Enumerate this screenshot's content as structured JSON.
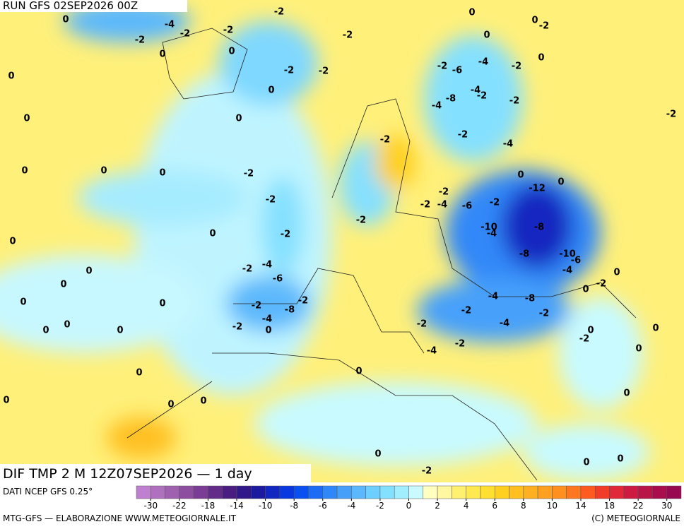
{
  "header": {
    "run": "RUN GFS 02SEP2026 00Z"
  },
  "map": {
    "title": "DIF TMP 2 M 12Z07SEP2026 — 1 day",
    "contour_labels": [
      0,
      -2,
      -4,
      -2,
      -2,
      -2,
      0,
      0,
      -2,
      0,
      -2,
      -2,
      0,
      0,
      0,
      -2,
      0,
      0,
      0,
      -2,
      -2,
      -2,
      -2,
      0,
      0,
      0,
      -2,
      -4,
      -6,
      0,
      0,
      0,
      -2,
      -2,
      -4,
      -8,
      -2,
      0,
      0,
      0,
      0,
      0,
      0,
      0,
      0,
      0,
      -2,
      -4,
      -6,
      -2,
      -10,
      -4,
      -12,
      -8,
      -8,
      -10,
      -6,
      -4,
      -4,
      -8,
      -2,
      -4,
      -2,
      -2,
      -4,
      -2,
      0,
      -2,
      0,
      0,
      -2,
      0,
      0,
      0,
      0,
      0,
      0,
      -2,
      -2,
      -6,
      -4,
      -2,
      0,
      -4,
      -2,
      -8,
      -4,
      -2,
      -2,
      -4,
      0,
      -2,
      0,
      -2,
      0,
      0,
      -2,
      0
    ]
  },
  "legend": {
    "source": "DATI NCEP GFS 0.25°",
    "ticks": [
      -30,
      -22,
      -18,
      -14,
      -10,
      -8,
      -6,
      -4,
      -2,
      0,
      2,
      4,
      6,
      8,
      10,
      14,
      18,
      22,
      30
    ],
    "colors": [
      "#c080d0",
      "#b070c0",
      "#a060b0",
      "#8e4ea0",
      "#7a3c94",
      "#622c88",
      "#4a1e80",
      "#30188a",
      "#1c1aa0",
      "#1226c0",
      "#0a38e0",
      "#0a50f0",
      "#1c6cf5",
      "#3088f8",
      "#46a0fa",
      "#5cb8fc",
      "#6ccfff",
      "#84e0ff",
      "#a0eeff",
      "#c8faff",
      "#ffffc0",
      "#fff8a0",
      "#fff070",
      "#ffe850",
      "#ffe030",
      "#ffd020",
      "#ffc020",
      "#ffb020",
      "#ffa020",
      "#ff9020",
      "#ff7820",
      "#ff5a20",
      "#f03c28",
      "#e02838",
      "#cc1a40",
      "#b81448",
      "#a80c4c",
      "#980850"
    ]
  },
  "footer": {
    "left": "MTG-GFS — ELABORAZIONE WWW.METEOGIORNALE.IT",
    "right": "(C) METEOGIORNALE"
  }
}
